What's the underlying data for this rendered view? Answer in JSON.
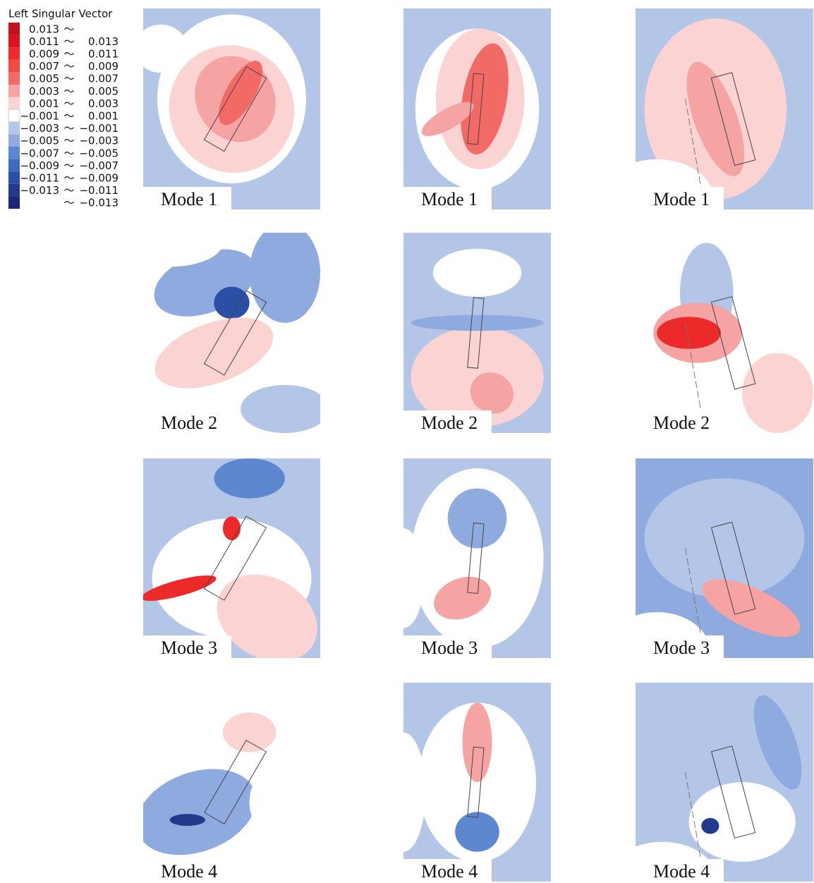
{
  "legend": {
    "title": "Left Singular Vector",
    "separator": "～",
    "entries": [
      {
        "color": "#c1121f",
        "low": "0.013"
      },
      {
        "color": "#d9141c",
        "low": "0.011",
        "high": "0.013"
      },
      {
        "color": "#ec2a2a",
        "low": "0.009",
        "high": "0.011"
      },
      {
        "color": "#f04a44",
        "low": "0.007",
        "high": "0.009"
      },
      {
        "color": "#f26a66",
        "low": "0.005",
        "high": "0.007"
      },
      {
        "color": "#f6a3a3",
        "low": "0.003",
        "high": "0.005"
      },
      {
        "color": "#fbd3d3",
        "low": "0.001",
        "high": "0.003"
      },
      {
        "color": "#ffffff",
        "low": "−0.001",
        "high": "0.001"
      },
      {
        "color": "#b3c6e8",
        "low": "−0.003",
        "high": "−0.001"
      },
      {
        "color": "#8eaadf",
        "low": "−0.005",
        "high": "−0.003"
      },
      {
        "color": "#5d87cf",
        "low": "−0.007",
        "high": "−0.005"
      },
      {
        "color": "#3d6bbd",
        "low": "−0.009",
        "high": "−0.007"
      },
      {
        "color": "#2a50a6",
        "low": "−0.011",
        "high": "−0.009"
      },
      {
        "color": "#213a8c",
        "low": "−0.013",
        "high": "−0.011"
      },
      {
        "color": "#1b2770",
        "high": "−0.013"
      }
    ]
  },
  "panels": [
    {
      "label": "Mode 1"
    },
    {
      "label": "Mode 1"
    },
    {
      "label": "Mode 1"
    },
    {
      "label": "Mode 2"
    },
    {
      "label": "Mode 2"
    },
    {
      "label": "Mode 2"
    },
    {
      "label": "Mode 3"
    },
    {
      "label": "Mode 3"
    },
    {
      "label": "Mode 3"
    },
    {
      "label": "Mode 4"
    },
    {
      "label": "Mode 4"
    },
    {
      "label": "Mode 4"
    }
  ]
}
